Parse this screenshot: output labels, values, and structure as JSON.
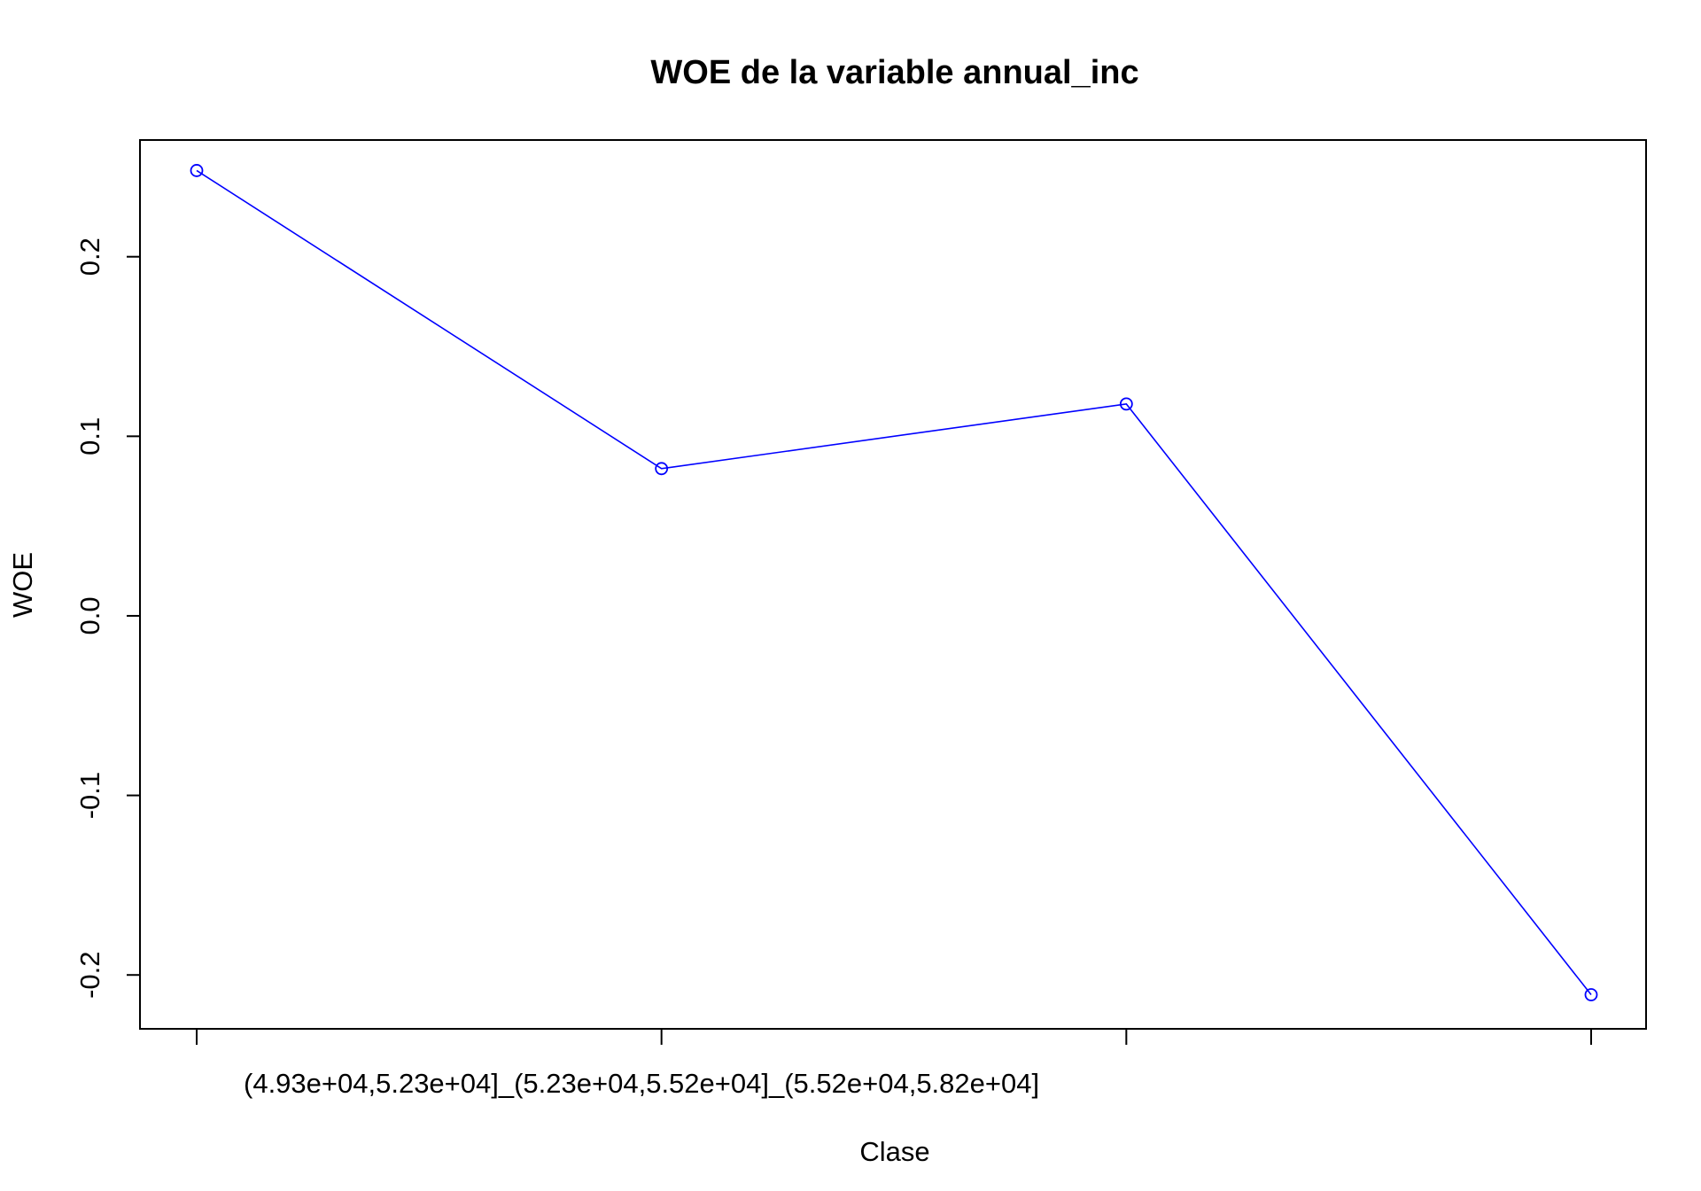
{
  "chart_data": {
    "type": "line",
    "title": "WOE de la variable annual_inc",
    "xlabel": "Clase",
    "ylabel": "WOE",
    "categories": [
      "(4.93e+04,5.23e+04]_(5.23e+04,5.52e+04]_(5.52e+04,5.82e+04]",
      "",
      "",
      ""
    ],
    "x_tick_label": "(4.93e+04,5.23e+04]_(5.23e+04,5.52e+04]_(5.52e+04,5.82e+04]",
    "values": [
      0.248,
      0.082,
      0.118,
      -0.211
    ],
    "yticks": [
      "-0.2",
      "-0.1",
      "0.0",
      "0.1",
      "0.2"
    ],
    "ylim": [
      -0.23,
      0.265
    ],
    "grid": false,
    "line_color": "#0000ff",
    "marker": "open-circle"
  }
}
